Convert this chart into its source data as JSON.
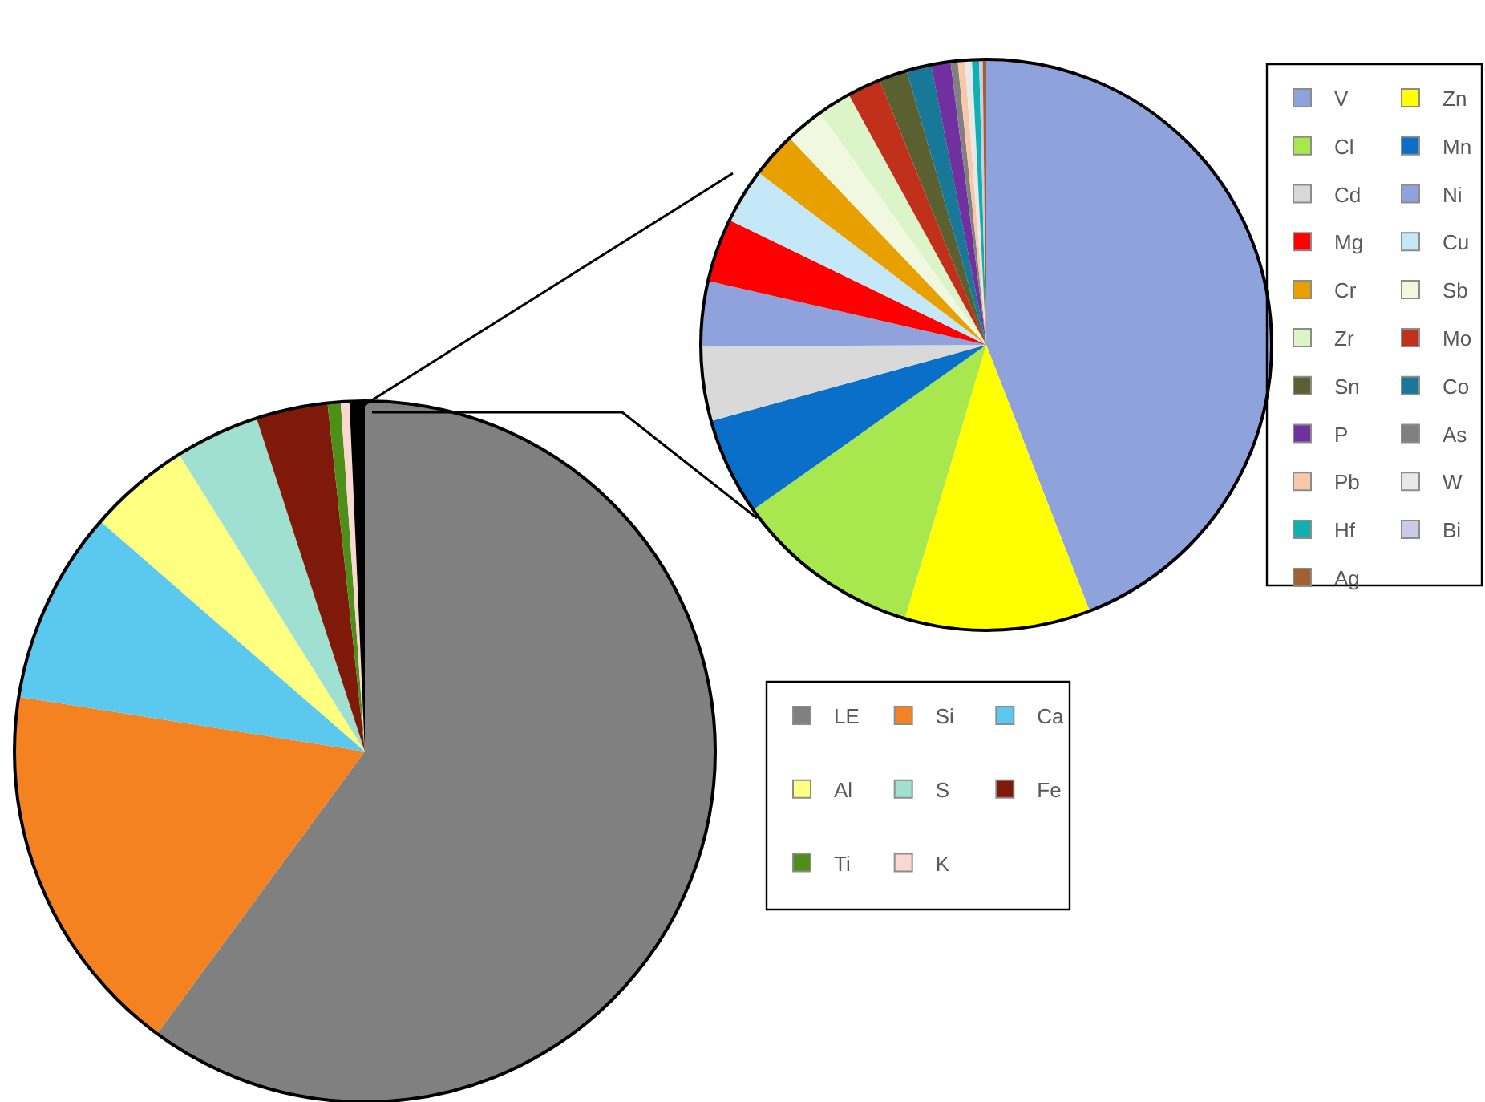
{
  "chart_data": [
    {
      "type": "pie",
      "categories": [
        "LE",
        "Si",
        "Ca",
        "Al",
        "S",
        "Fe",
        "Ti",
        "K",
        null
      ],
      "values": [
        60.1,
        17.4,
        8.9,
        4.7,
        3.9,
        3.3,
        0.6,
        0.4,
        0.7
      ],
      "colors": [
        "#808080",
        "#f58220",
        "#5bc8f0",
        "#ffff80",
        "#9fe0d0",
        "#7f1a0a",
        "#4e8f1a",
        "#f8d8d0",
        "#000000"
      ],
      "legend": "right"
    },
    {
      "type": "pie",
      "categories": [
        "V",
        "Zn",
        "Cl",
        "Mn",
        "Cd",
        "Ni",
        "Mg",
        "Cu",
        "Cr",
        "Sb",
        "Zr",
        "Mo",
        "Sn",
        "Co",
        "P",
        "As",
        "Pb",
        "W",
        "Hf",
        "Bi",
        "Ag"
      ],
      "values": [
        44.1,
        10.5,
        10.6,
        5.5,
        4.2,
        3.7,
        3.6,
        3.1,
        2.6,
        2.2,
        1.9,
        1.9,
        1.6,
        1.4,
        1.1,
        0.4,
        0.4,
        0.4,
        0.4,
        0.2,
        0.2
      ],
      "colors": [
        "#8fa2dc",
        "#ffff00",
        "#a8e84e",
        "#0a6fc8",
        "#d9d9d9",
        "#8fa2dc",
        "#ff0000",
        "#c5e8f8",
        "#e8a000",
        "#f0f8e0",
        "#dcf5c8",
        "#c0301a",
        "#5a6030",
        "#187898",
        "#7030a0",
        "#808080",
        "#f8c8a8",
        "#e8e8e8",
        "#10b0b0",
        "#c8cce8",
        "#a06030"
      ],
      "legend": "right"
    }
  ]
}
